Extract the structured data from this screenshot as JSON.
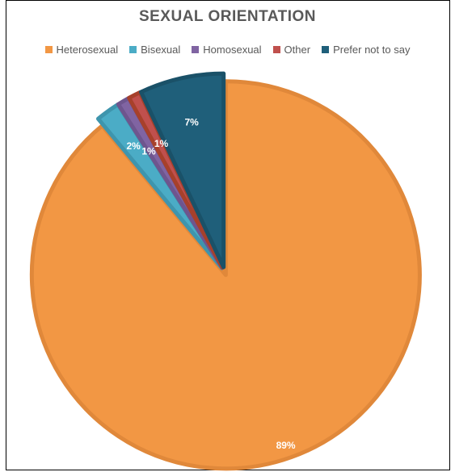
{
  "chart_data": {
    "type": "pie",
    "title": "SEXUAL ORIENTATION",
    "legend_position": "top",
    "start_angle_deg": 0,
    "direction": "clockwise",
    "categories": [
      "Heterosexual",
      "Bisexual",
      "Homosexual",
      "Other",
      "Prefer not to say"
    ],
    "values": [
      89,
      2,
      1,
      1,
      7
    ],
    "data_labels": [
      "89%",
      "2%",
      "1%",
      "1%",
      "7%"
    ],
    "colors": [
      "#F29744",
      "#4BACC6",
      "#8064A2",
      "#C0504D",
      "#1F5F7A"
    ],
    "border_colors": [
      "#E0883A",
      "#3E95AD",
      "#6E558E",
      "#A7402B",
      "#1A5168"
    ]
  }
}
